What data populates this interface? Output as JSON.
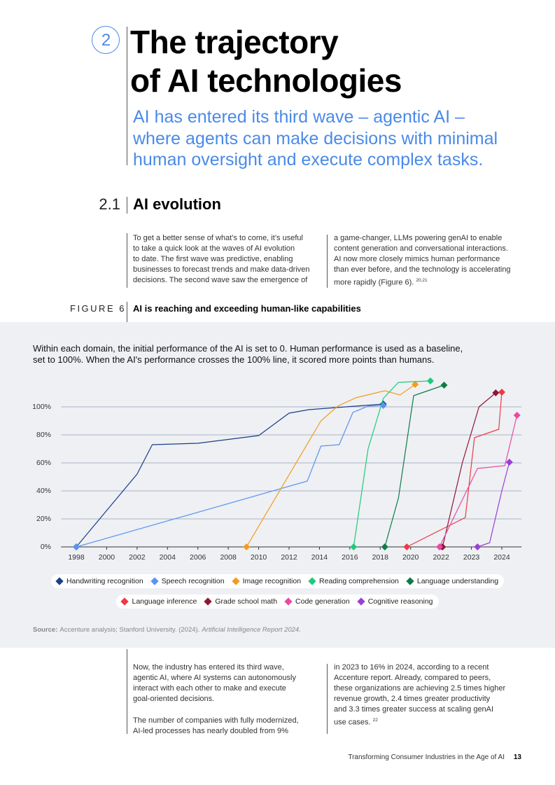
{
  "header": {
    "number": "2",
    "title_lines": [
      "The trajectory",
      "of AI technologies"
    ],
    "subtitle_lines": [
      "AI has entered its third wave – agentic AI –",
      "where agents can make decisions with minimal",
      "human oversight and execute complex tasks."
    ]
  },
  "section": {
    "number": "2.1",
    "title": "AI evolution"
  },
  "body": {
    "col1_lines": [
      "To get a better sense of what’s to come, it’s useful",
      "to take a quick look at the waves of AI evolution",
      "to date. The first wave was predictive, enabling",
      "businesses to forecast trends and make data-driven",
      "decisions. The second wave saw the emergence of"
    ],
    "col2_lines": [
      "a game-changer, LLMs powering genAI to enable",
      "content generation and conversational interactions.",
      "AI now more closely mimics human performance",
      "than ever before, and the technology is accelerating",
      "more rapidly (Figure 6)."
    ],
    "col2_sup": "20,21"
  },
  "figure": {
    "label": "FIGURE 6",
    "title": "AI is reaching and exceeding human-like capabilities",
    "description_lines": [
      "Within each domain, the initial performance of the AI is set to 0. Human performance is used as a baseline,",
      "set to 100%. When the AI's performance crosses the 100% line, it scored more points than humans."
    ]
  },
  "chart_data": {
    "type": "line",
    "xlim": [
      1997,
      2024.65
    ],
    "xticks": [
      1998,
      2000,
      2002,
      2004,
      2006,
      2008,
      2010,
      2012,
      2014,
      2016,
      2018,
      2020,
      2022,
      2023,
      2024
    ],
    "ylim": [
      0,
      120
    ],
    "yticks": [
      {
        "value": 0,
        "label": "0%"
      },
      {
        "value": 20,
        "label": "20%"
      },
      {
        "value": 40,
        "label": "40%"
      },
      {
        "value": 60,
        "label": "60%"
      },
      {
        "value": 80,
        "label": "80%"
      },
      {
        "value": 100,
        "label": "100%"
      }
    ],
    "grid": true,
    "series": [
      {
        "name": "Handwriting recognition",
        "color": "#1b3f8a",
        "x": [
          1998,
          2002,
          2003,
          2006,
          2010,
          2012,
          2013.3,
          2018.2
        ],
        "values": [
          0,
          52,
          73,
          74,
          79.5,
          95.5,
          98,
          102
        ]
      },
      {
        "name": "Speech recognition",
        "color": "#5b93f0",
        "x": [
          1998,
          2013.2,
          2014.1,
          2015.3,
          2016.2,
          2017.2,
          2018.2
        ],
        "values": [
          0,
          47,
          72,
          73,
          96,
          100.5,
          101
        ]
      },
      {
        "name": "Image recognition",
        "color": "#f39c1e",
        "x": [
          2009.2,
          2014.1,
          2015.2,
          2016.4,
          2018.3,
          2019.3,
          2020.3
        ],
        "values": [
          0,
          90,
          100.5,
          106.5,
          111.5,
          108.5,
          116
        ]
      },
      {
        "name": "Reading comprehension",
        "color": "#20c97c",
        "x": [
          2016.25,
          2017.2,
          2018.2,
          2019.2,
          2021.3
        ],
        "values": [
          0,
          70,
          106,
          117.5,
          118.5
        ]
      },
      {
        "name": "Language understanding",
        "color": "#0e7c47",
        "x": [
          2018.3,
          2019.2,
          2020.2,
          2022.1
        ],
        "values": [
          0,
          35,
          108,
          115.5
        ]
      },
      {
        "name": "Language inference",
        "color": "#ec3a46",
        "x": [
          2019.75,
          2022.8,
          2023.1,
          2023.9,
          2024
        ],
        "values": [
          0,
          21,
          78,
          84,
          110.5
        ]
      },
      {
        "name": "Grade school math",
        "color": "#8e1732",
        "x": [
          2022.05,
          2022.7,
          2023.25,
          2023.8
        ],
        "values": [
          0,
          60,
          100,
          110
        ]
      },
      {
        "name": "Code generation",
        "color": "#e84aa5",
        "x": [
          2021.9,
          2023.2,
          2024.1,
          2024.5
        ],
        "values": [
          0,
          56,
          58,
          94
        ]
      },
      {
        "name": "Cognitive reasoning",
        "color": "#9b3fd4",
        "x": [
          2023.2,
          2023.6,
          2024,
          2024.25
        ],
        "values": [
          0,
          3,
          40,
          60.5
        ]
      }
    ]
  },
  "source": {
    "label": "Source:",
    "text": "Accenture analysis; Stanford University. (2024).",
    "italic": "Artificial Intelligence Report 2024."
  },
  "body2": {
    "col1_para1": [
      "Now, the industry has entered its third wave,",
      "agentic AI, where AI systems can autonomously",
      "interact with each other to make and execute",
      "goal-oriented decisions."
    ],
    "col1_para2": [
      "The number of companies with fully modernized,",
      "AI-led processes has nearly doubled from 9%"
    ],
    "col2_lines": [
      "in 2023 to 16% in 2024, according to a recent",
      "Accenture report. Already, compared to peers,",
      "these organizations are achieving 2.5 times higher",
      "revenue growth, 2.4 times greater productivity",
      "and 3.3 times greater success at scaling genAI",
      "use cases."
    ],
    "col2_sup": "22"
  },
  "footer": {
    "text": "Transforming Consumer Industries in the Age of AI",
    "page": "13"
  }
}
